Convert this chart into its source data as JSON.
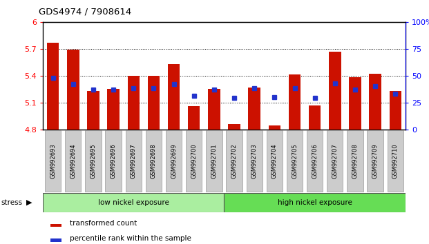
{
  "title": "GDS4974 / 7908614",
  "samples": [
    "GSM992693",
    "GSM992694",
    "GSM992695",
    "GSM992696",
    "GSM992697",
    "GSM992698",
    "GSM992699",
    "GSM992700",
    "GSM992701",
    "GSM992702",
    "GSM992703",
    "GSM992704",
    "GSM992705",
    "GSM992706",
    "GSM992707",
    "GSM992708",
    "GSM992709",
    "GSM992710"
  ],
  "red_values": [
    5.77,
    5.69,
    5.23,
    5.25,
    5.4,
    5.4,
    5.53,
    5.06,
    5.25,
    4.86,
    5.27,
    4.84,
    5.41,
    5.07,
    5.67,
    5.38,
    5.42,
    5.23
  ],
  "blue_pcts": [
    48,
    42,
    37,
    37,
    38,
    38,
    42,
    31,
    37,
    29,
    38,
    30,
    38,
    29,
    43,
    37,
    40,
    33
  ],
  "group1_label": "low nickel exposure",
  "group2_label": "high nickel exposure",
  "group1_count": 9,
  "stress_label": "stress",
  "ymin": 4.8,
  "ymax": 6.0,
  "yticks": [
    4.8,
    5.1,
    5.4,
    5.7,
    6.0
  ],
  "ytick_labels": [
    "4.8",
    "5.1",
    "5.4",
    "5.7",
    "6"
  ],
  "y2ticks_pct": [
    0,
    25,
    50,
    75,
    100
  ],
  "y2labels": [
    "0",
    "25",
    "50",
    "75",
    "100%"
  ],
  "bar_color": "#cc1100",
  "blue_color": "#2233cc",
  "group1_color": "#aaeea0",
  "group2_color": "#66dd55",
  "xtick_bg": "#cccccc",
  "legend_red": "transformed count",
  "legend_blue": "percentile rank within the sample"
}
